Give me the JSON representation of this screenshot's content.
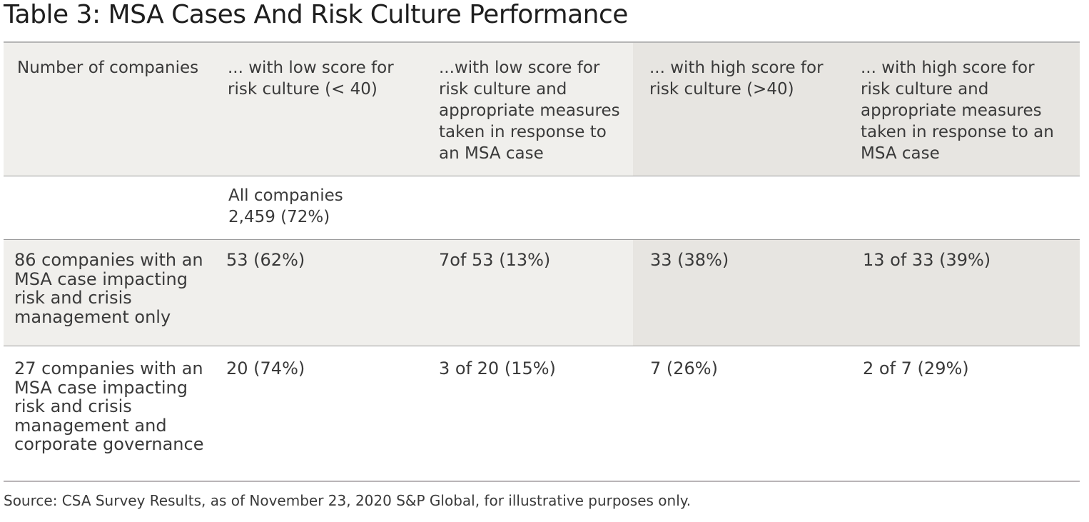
{
  "title": "Table 3: MSA Cases And Risk Culture Performance",
  "table": {
    "headers": [
      "Number of companies",
      "... with low score for risk culture (< 40)",
      "...with low score for risk culture and appropriate measures taken in response to an MSA case",
      "... with high score for risk culture (>40)",
      "... with high score for risk culture and appropriate measures taken in response to an MSA case"
    ],
    "all_companies": {
      "label": "All companies",
      "value": "2,459 (72%)"
    },
    "rows": [
      {
        "label": "86 companies with an MSA case impacting risk and crisis management only",
        "cells": [
          "53 (62%)",
          "7of 53 (13%)",
          "33 (38%)",
          "13 of 33 (39%)"
        ]
      },
      {
        "label": "27 companies with an MSA case impacting risk and crisis management and corporate governance",
        "cells": [
          "20 (74%)",
          "3 of 20 (15%)",
          "7 (26%)",
          "2 of 7 (29%)"
        ]
      }
    ]
  },
  "source": "Source: CSA Survey Results, as of November 23, 2020 S&P Global, for illustrative purposes only."
}
